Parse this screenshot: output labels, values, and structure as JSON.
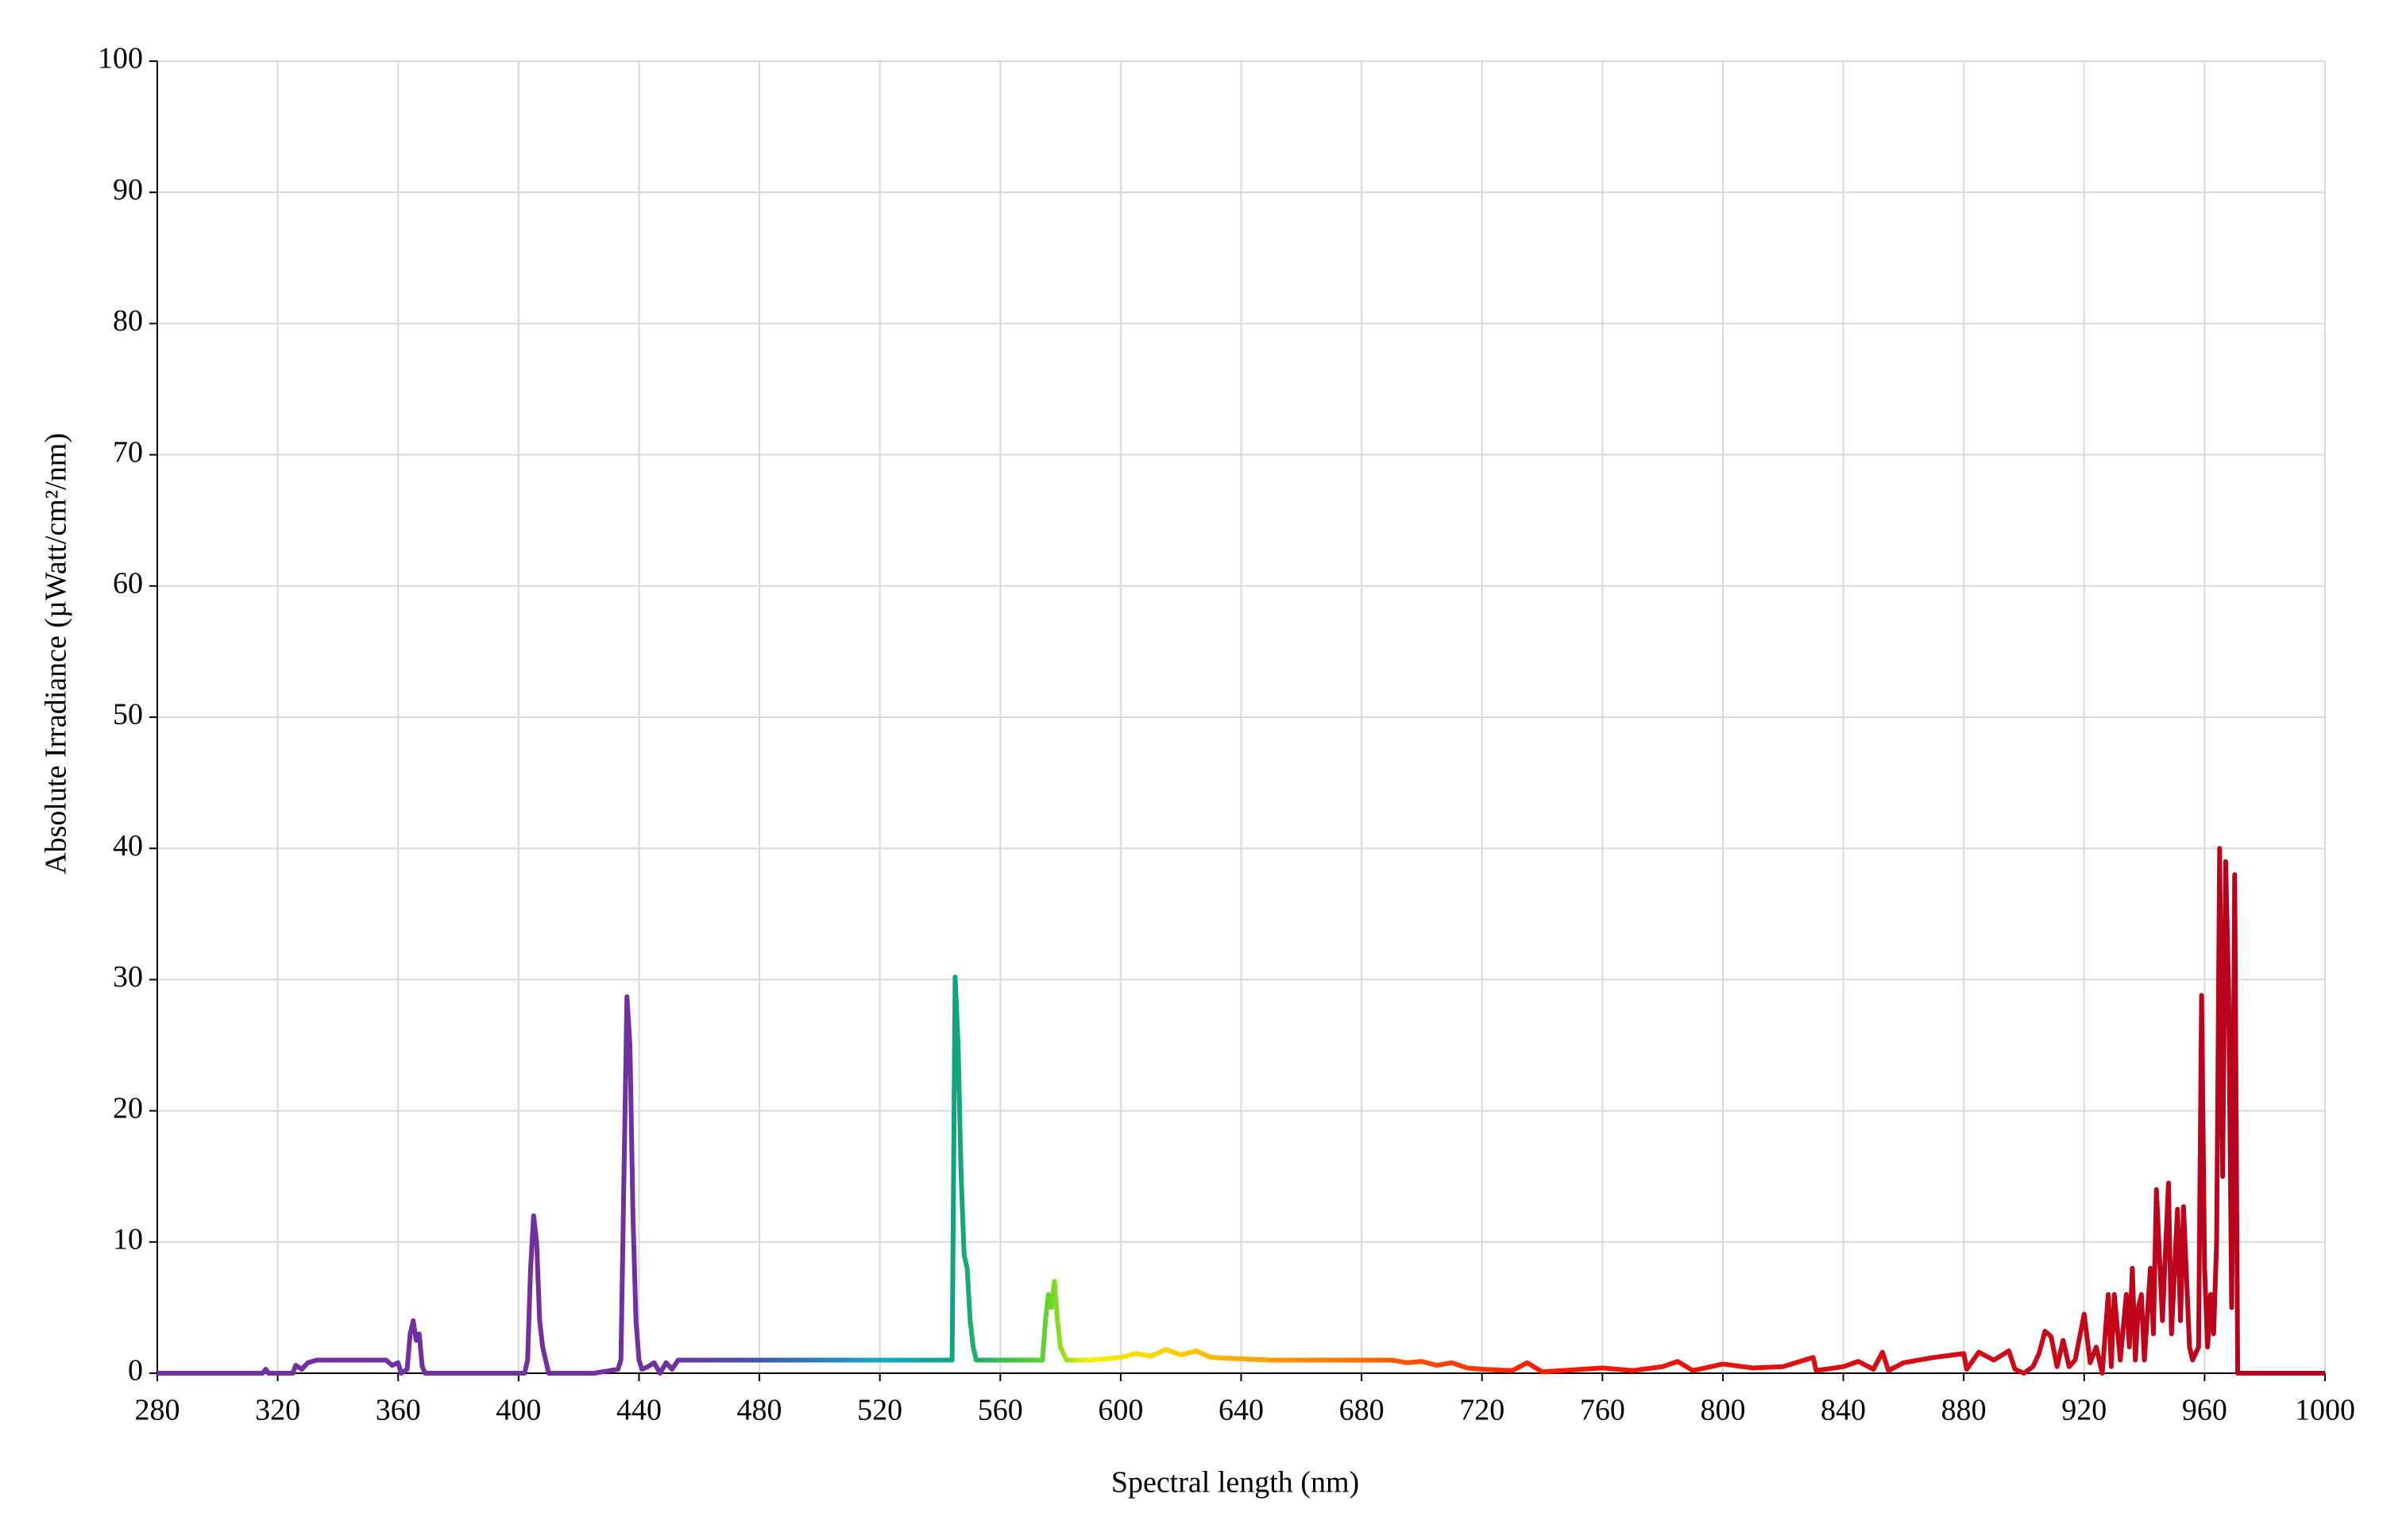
{
  "chart_data": {
    "type": "line",
    "x_label": "Spectral length (nm)",
    "y_label": "Absolute Irradiance (µWatt/cm²/nm)",
    "xlim": [
      280,
      1000
    ],
    "xticks": [
      280,
      320,
      360,
      400,
      440,
      480,
      520,
      560,
      600,
      640,
      680,
      720,
      760,
      800,
      840,
      880,
      920,
      960,
      1000
    ],
    "ylim": [
      0,
      100
    ],
    "yticks": [
      0,
      10,
      20,
      30,
      40,
      50,
      60,
      70,
      80,
      90,
      100
    ],
    "grid": true,
    "gradient": [
      {
        "x": 280,
        "color": "#7030a0"
      },
      {
        "x": 450,
        "color": "#7030a0"
      },
      {
        "x": 480,
        "color": "#3f55b3"
      },
      {
        "x": 520,
        "color": "#1aa6c6"
      },
      {
        "x": 545,
        "color": "#10a37f"
      },
      {
        "x": 575,
        "color": "#5fd32f"
      },
      {
        "x": 590,
        "color": "#f5f000"
      },
      {
        "x": 620,
        "color": "#ffc800"
      },
      {
        "x": 660,
        "color": "#ff8c00"
      },
      {
        "x": 700,
        "color": "#ff4a00"
      },
      {
        "x": 740,
        "color": "#ff1a00"
      },
      {
        "x": 820,
        "color": "#e01010"
      },
      {
        "x": 1000,
        "color": "#b00020"
      }
    ],
    "x": [
      280,
      315,
      316,
      317,
      325,
      326,
      328,
      330,
      333,
      340,
      350,
      356,
      358,
      360,
      361,
      363,
      364,
      365,
      366,
      367,
      368,
      369,
      380,
      402,
      403,
      404,
      405,
      406,
      407,
      408,
      409,
      410,
      425,
      433,
      434,
      435,
      436,
      437,
      438,
      439,
      440,
      441,
      443,
      445,
      447,
      449,
      451,
      453,
      460,
      500,
      540,
      544,
      545,
      546,
      547,
      548,
      549,
      550,
      551,
      552,
      560,
      574,
      575,
      576,
      577,
      578,
      579,
      580,
      582,
      590,
      600,
      605,
      610,
      615,
      620,
      625,
      630,
      640,
      650,
      680,
      690,
      695,
      700,
      705,
      710,
      715,
      720,
      730,
      735,
      740,
      760,
      770,
      780,
      785,
      790,
      800,
      810,
      820,
      830,
      831,
      840,
      845,
      850,
      853,
      855,
      860,
      870,
      880,
      881,
      885,
      890,
      895,
      897,
      900,
      903,
      905,
      907,
      909,
      911,
      913,
      915,
      917,
      920,
      922,
      924,
      926,
      928,
      929,
      930,
      932,
      934,
      935,
      936,
      937,
      938,
      939,
      940,
      942,
      943,
      944,
      946,
      948,
      949,
      951,
      952,
      953,
      955,
      956,
      958,
      959,
      960,
      961,
      962,
      963,
      964,
      965,
      966,
      967,
      968,
      969,
      970,
      971,
      1000
    ],
    "values": [
      0,
      0,
      0.3,
      0,
      0,
      0.6,
      0.3,
      0.8,
      1,
      1,
      1,
      1,
      0.6,
      0.8,
      0,
      0.3,
      3,
      4,
      2.5,
      3,
      0.5,
      0,
      0,
      0,
      1,
      8,
      12,
      10,
      4,
      2,
      1,
      0,
      0,
      0.3,
      1,
      15,
      28.7,
      25,
      12,
      4,
      1,
      0.3,
      0.5,
      0.8,
      0,
      0.8,
      0.3,
      1,
      1,
      1,
      1,
      1,
      30.2,
      25,
      15,
      9,
      8,
      4,
      2,
      1,
      1,
      1,
      4,
      6,
      5,
      7,
      4,
      2,
      1,
      1,
      1.2,
      1.5,
      1.3,
      1.8,
      1.4,
      1.7,
      1.2,
      1.1,
      1,
      1,
      1,
      0.8,
      0.9,
      0.6,
      0.8,
      0.4,
      0.3,
      0.2,
      0.8,
      0.1,
      0.4,
      0.2,
      0.5,
      0.9,
      0.2,
      0.7,
      0.4,
      0.5,
      1.2,
      0.2,
      0.5,
      0.9,
      0.3,
      1.6,
      0.2,
      0.8,
      1.2,
      1.5,
      0.3,
      1.6,
      1,
      1.7,
      0.3,
      0,
      0.5,
      1.5,
      3.2,
      2.8,
      0.5,
      2.5,
      0.5,
      1,
      4.5,
      0.8,
      2,
      0,
      6,
      0.5,
      6,
      1,
      6,
      2,
      8,
      1,
      5,
      6,
      1,
      8,
      3,
      14,
      4,
      14.5,
      3,
      12.5,
      4,
      12.7,
      2,
      1,
      2,
      28.8,
      8,
      2,
      6,
      3,
      10,
      40,
      15,
      39,
      29,
      5,
      38,
      0,
      0
    ]
  }
}
